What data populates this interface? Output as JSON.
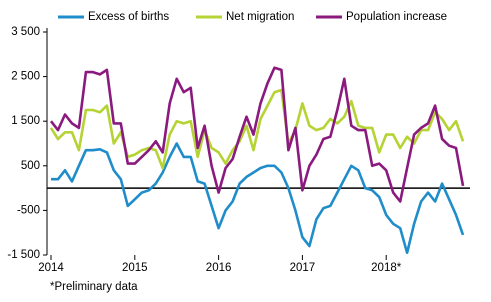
{
  "chart_data": {
    "type": "line",
    "categories": [
      "2014",
      null,
      null,
      null,
      null,
      null,
      null,
      null,
      null,
      null,
      null,
      null,
      "2015",
      null,
      null,
      null,
      null,
      null,
      null,
      null,
      null,
      null,
      null,
      null,
      "2016",
      null,
      null,
      null,
      null,
      null,
      null,
      null,
      null,
      null,
      null,
      null,
      "2017",
      null,
      null,
      null,
      null,
      null,
      null,
      null,
      null,
      null,
      null,
      null,
      "2018*",
      null,
      null,
      null,
      null,
      null,
      null,
      null,
      null,
      null,
      null,
      null
    ],
    "series": [
      {
        "name": "Excess of births",
        "color": "#1f8dc9",
        "values": [
          200,
          200,
          400,
          150,
          500,
          850,
          850,
          870,
          800,
          400,
          200,
          -400,
          -250,
          -100,
          -50,
          100,
          350,
          700,
          1000,
          700,
          700,
          150,
          100,
          -400,
          -900,
          -500,
          -300,
          100,
          250,
          350,
          450,
          500,
          500,
          350,
          0,
          -500,
          -1100,
          -1300,
          -700,
          -450,
          -400,
          -100,
          200,
          500,
          400,
          0,
          -50,
          -200,
          -600,
          -800,
          -900,
          -1450,
          -800,
          -300,
          -100,
          -300,
          100,
          -250,
          -600,
          -1050
        ]
      },
      {
        "name": "Net migration",
        "color": "#b5d334",
        "values": [
          1350,
          1100,
          1250,
          1250,
          850,
          1750,
          1750,
          1700,
          1850,
          1000,
          1250,
          700,
          750,
          850,
          900,
          850,
          450,
          1200,
          1500,
          1450,
          1500,
          700,
          1300,
          900,
          800,
          550,
          850,
          1050,
          1400,
          850,
          1550,
          1850,
          2150,
          2200,
          1000,
          1300,
          1900,
          1400,
          1300,
          1350,
          1550,
          1450,
          1600,
          1950,
          1400,
          1350,
          1350,
          800,
          1200,
          1200,
          900,
          1150,
          1000,
          1300,
          1300,
          1700,
          1550,
          1300,
          1500,
          1050
        ]
      },
      {
        "name": "Population increase",
        "color": "#8b1a7f",
        "values": [
          1500,
          1300,
          1650,
          1450,
          1350,
          2600,
          2600,
          2550,
          2650,
          1450,
          1450,
          550,
          550,
          700,
          850,
          1050,
          800,
          1900,
          2450,
          2150,
          2250,
          900,
          1400,
          500,
          -100,
          450,
          650,
          1150,
          1600,
          1200,
          1900,
          2350,
          2700,
          2650,
          850,
          1350,
          -50,
          500,
          750,
          1100,
          1150,
          1750,
          2450,
          1400,
          1300,
          1300,
          500,
          550,
          400,
          -100,
          -300,
          450,
          1200,
          1350,
          1450,
          1850,
          1100,
          950,
          900,
          50
        ]
      }
    ],
    "ylim": [
      -1500,
      3500
    ],
    "yticks": [
      {
        "value": -1500,
        "label": "-1 500"
      },
      -500,
      500,
      {
        "value": 1500,
        "label": "1 500"
      },
      {
        "value": 2500,
        "label": "2 500"
      },
      {
        "value": 3500,
        "label": "3 500"
      }
    ],
    "annotation": "*Preliminary data"
  }
}
